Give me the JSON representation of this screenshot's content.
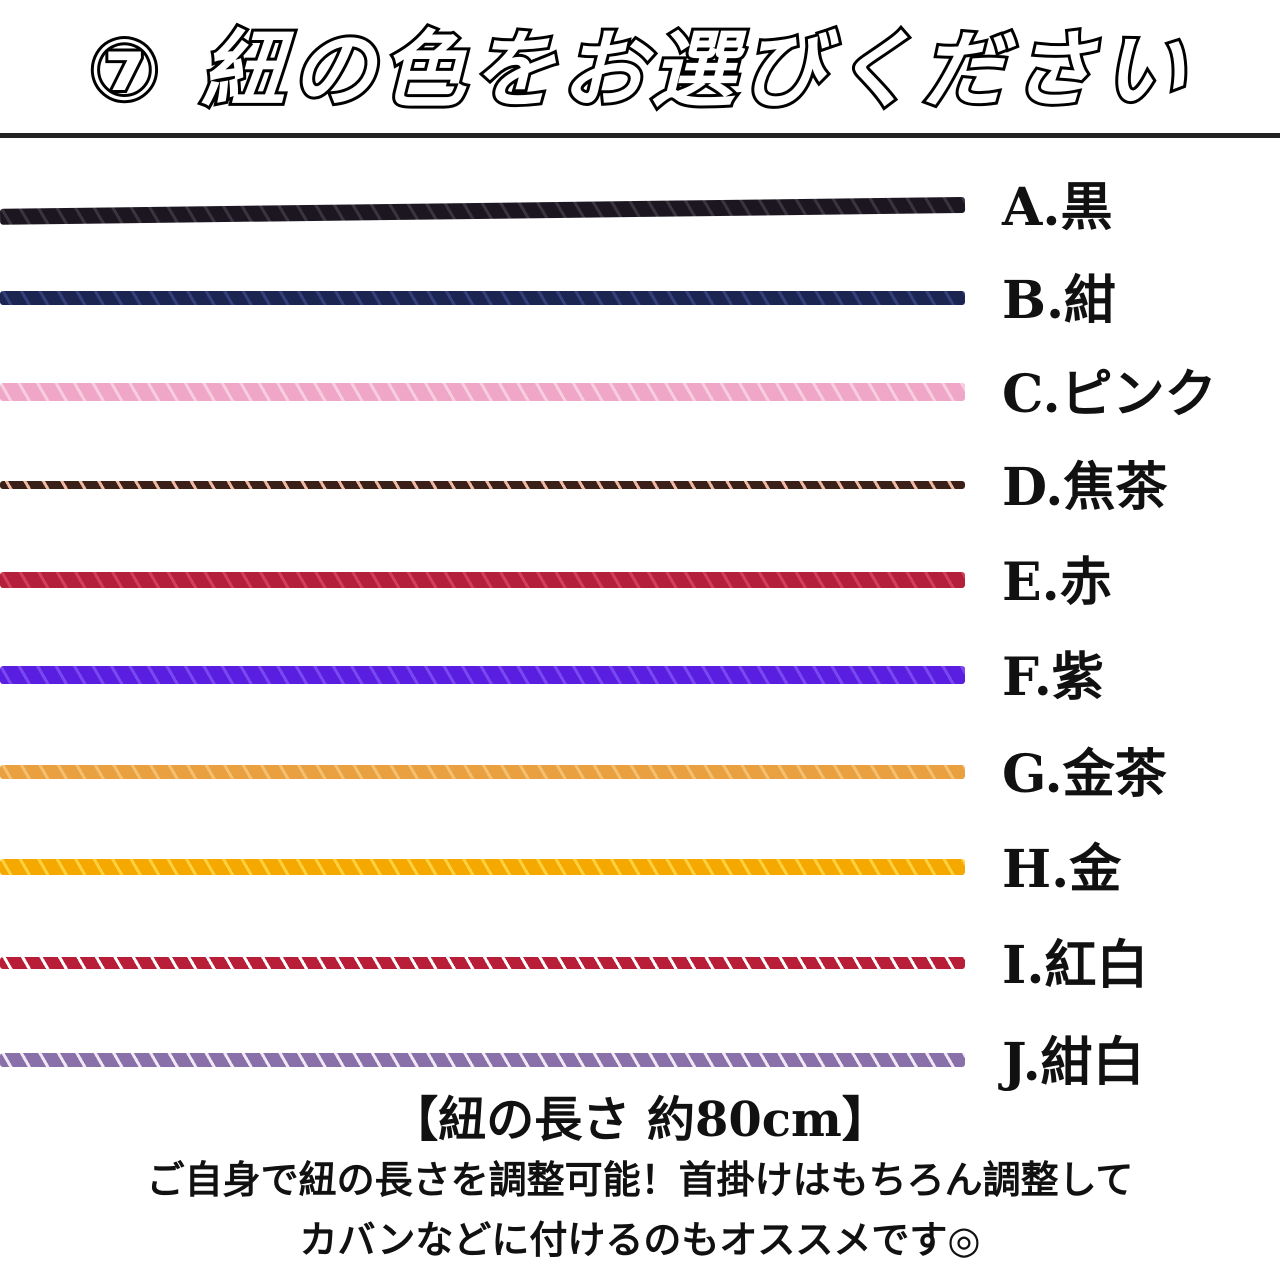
{
  "title": "⑦ 紐の色をお選びください",
  "cords": [
    {
      "label": "A.黒",
      "color": "#1b1620",
      "accent": "#3a3440"
    },
    {
      "label": "B.紺",
      "color": "#1c2452",
      "accent": "#34407a"
    },
    {
      "label": "C.ピンク",
      "color": "#f0a6c6",
      "accent": "#f8cde0"
    },
    {
      "label": "D.焦茶",
      "color": "#3a2018",
      "accent": "#f0b8a0"
    },
    {
      "label": "E.赤",
      "color": "#b41f3c",
      "accent": "#d04058"
    },
    {
      "label": "F.紫",
      "color": "#5a1ee0",
      "accent": "#7a48f0"
    },
    {
      "label": "G.金茶",
      "color": "#e8a040",
      "accent": "#f4c070"
    },
    {
      "label": "H.金",
      "color": "#f5a800",
      "accent": "#ffd040"
    },
    {
      "label": "I.紅白",
      "color": "#b81e38",
      "accent": "#ffffff"
    },
    {
      "label": "J.紺白",
      "color": "#8a70a8",
      "accent": "#f0e8f4"
    }
  ],
  "length_note": "【紐の長さ 約80cm】",
  "description": [
    "ご自身で紐の長さを調整可能！首掛けはもちろん調整して",
    "カバンなどに付けるのもオススメです◎"
  ]
}
